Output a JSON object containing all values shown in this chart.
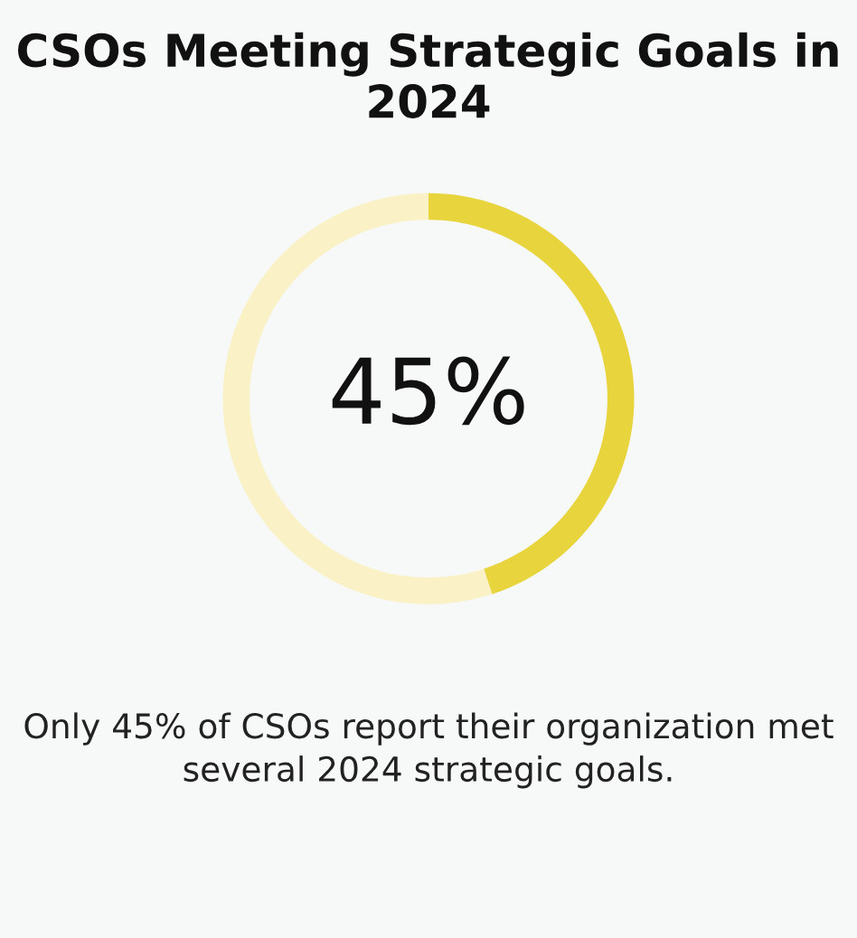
{
  "chart_data": {
    "type": "donut",
    "title": "CSOs Meeting Strategic Goals in 2024",
    "categories": [
      null,
      null
    ],
    "values": [
      45,
      55
    ],
    "colors": [
      "#e8d43c",
      "#faf2c6"
    ],
    "value_labels": [
      "45%",
      null
    ],
    "annotations": [
      "Only 45% of CSOs report their organization met several 2024 strategic goals."
    ],
    "legend": false
  }
}
